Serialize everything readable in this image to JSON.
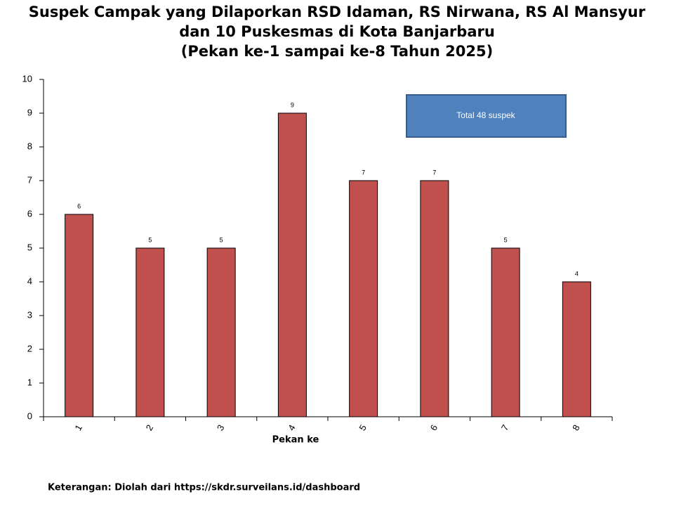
{
  "chart_data": {
    "type": "bar",
    "title": [
      "Suspek Campak yang Dilaporkan RSD Idaman, RS Nirwana, RS Al Mansyur",
      "dan 10 Puskesmas di Kota Banjarbaru",
      "(Pekan ke-1 sampai ke-8 Tahun 2025)"
    ],
    "x_label": "Pekan ke",
    "categories": [
      "1",
      "2",
      "3",
      "4",
      "5",
      "6",
      "7",
      "8"
    ],
    "values": [
      6,
      5,
      5,
      9,
      7,
      7,
      5,
      4
    ],
    "color": "#c0504d",
    "ylim": [
      0,
      10
    ],
    "yticks": [
      0,
      1,
      2,
      3,
      4,
      5,
      6,
      7,
      8,
      9,
      10
    ],
    "grid": false,
    "annotation": "Total 48 suspek",
    "note": "Keterangan: Diolah dari https://skdr.surveilans.id/dashboard"
  }
}
